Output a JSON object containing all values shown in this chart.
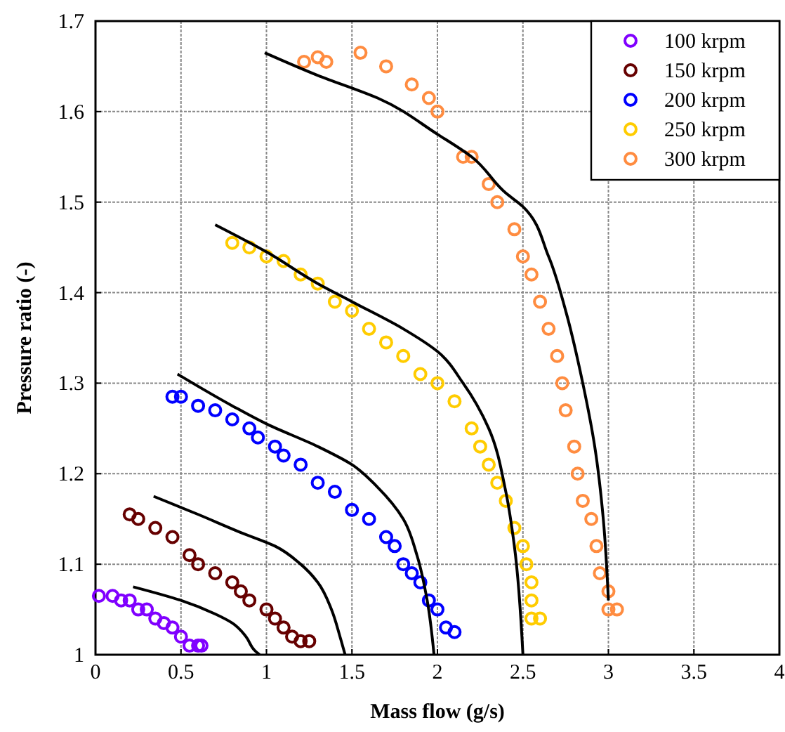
{
  "chart_data": {
    "type": "scatter",
    "xlabel": "Mass flow (g/s)",
    "ylabel": "Pressure ratio (-)",
    "xlim": [
      0,
      4
    ],
    "ylim": [
      1,
      1.7
    ],
    "xticks": [
      0,
      0.5,
      1,
      1.5,
      2,
      2.5,
      3,
      3.5,
      4
    ],
    "yticks": [
      1,
      1.1,
      1.2,
      1.3,
      1.4,
      1.5,
      1.6,
      1.7
    ],
    "grid": true,
    "legend": "top right",
    "marker": "circle",
    "series": [
      {
        "name": "100 krpm",
        "color": "#8000ff",
        "x": [
          0.02,
          0.1,
          0.15,
          0.2,
          0.25,
          0.3,
          0.35,
          0.4,
          0.45,
          0.5,
          0.55,
          0.6,
          0.62
        ],
        "values": [
          1.065,
          1.065,
          1.06,
          1.06,
          1.05,
          1.05,
          1.04,
          1.035,
          1.03,
          1.02,
          1.01,
          1.01,
          1.01
        ]
      },
      {
        "name": "150 krpm",
        "color": "#660000",
        "x": [
          0.2,
          0.25,
          0.35,
          0.45,
          0.55,
          0.6,
          0.7,
          0.8,
          0.85,
          0.9,
          1.0,
          1.05,
          1.1,
          1.15,
          1.2,
          1.25
        ],
        "values": [
          1.155,
          1.15,
          1.14,
          1.13,
          1.11,
          1.1,
          1.09,
          1.08,
          1.07,
          1.06,
          1.05,
          1.04,
          1.03,
          1.02,
          1.015,
          1.015
        ]
      },
      {
        "name": "200 krpm",
        "color": "#0000ff",
        "x": [
          0.45,
          0.5,
          0.6,
          0.7,
          0.8,
          0.9,
          0.95,
          1.05,
          1.1,
          1.2,
          1.3,
          1.4,
          1.5,
          1.6,
          1.7,
          1.75,
          1.8,
          1.85,
          1.9,
          1.95,
          2.0,
          2.05,
          2.1
        ],
        "values": [
          1.285,
          1.285,
          1.275,
          1.27,
          1.26,
          1.25,
          1.24,
          1.23,
          1.22,
          1.21,
          1.19,
          1.18,
          1.16,
          1.15,
          1.13,
          1.12,
          1.1,
          1.09,
          1.08,
          1.06,
          1.05,
          1.03,
          1.025
        ]
      },
      {
        "name": "250 krpm",
        "color": "#ffcc00",
        "x": [
          0.8,
          0.9,
          1.0,
          1.1,
          1.2,
          1.3,
          1.4,
          1.5,
          1.6,
          1.7,
          1.8,
          1.9,
          2.0,
          2.1,
          2.2,
          2.25,
          2.3,
          2.35,
          2.4,
          2.45,
          2.5,
          2.52,
          2.55,
          2.55,
          2.55,
          2.6
        ],
        "values": [
          1.455,
          1.45,
          1.44,
          1.435,
          1.42,
          1.41,
          1.39,
          1.38,
          1.36,
          1.345,
          1.33,
          1.31,
          1.3,
          1.28,
          1.25,
          1.23,
          1.21,
          1.19,
          1.17,
          1.14,
          1.12,
          1.1,
          1.08,
          1.06,
          1.04,
          1.04
        ]
      },
      {
        "name": "300 krpm",
        "color": "#ff8c40",
        "x": [
          1.22,
          1.3,
          1.35,
          1.55,
          1.7,
          1.85,
          1.95,
          2.0,
          2.15,
          2.2,
          2.3,
          2.35,
          2.45,
          2.5,
          2.55,
          2.6,
          2.65,
          2.7,
          2.73,
          2.75,
          2.8,
          2.82,
          2.85,
          2.9,
          2.93,
          2.95,
          3.0,
          3.0,
          3.05
        ],
        "values": [
          1.655,
          1.66,
          1.655,
          1.665,
          1.65,
          1.63,
          1.615,
          1.6,
          1.55,
          1.55,
          1.52,
          1.5,
          1.47,
          1.44,
          1.42,
          1.39,
          1.36,
          1.33,
          1.3,
          1.27,
          1.23,
          1.2,
          1.17,
          1.15,
          1.12,
          1.09,
          1.07,
          1.05,
          1.05
        ]
      },
      {
        "type": "line",
        "marker": "none",
        "color": "#000000",
        "x": [
          0.22,
          0.5,
          0.7,
          0.8,
          0.88,
          0.93,
          0.96
        ],
        "values": [
          1.075,
          1.06,
          1.045,
          1.035,
          1.02,
          1.005,
          1.0
        ]
      },
      {
        "type": "line",
        "marker": "none",
        "color": "#000000",
        "x": [
          0.34,
          0.6,
          0.85,
          1.05,
          1.2,
          1.3,
          1.38,
          1.43,
          1.46
        ],
        "values": [
          1.175,
          1.155,
          1.135,
          1.12,
          1.1,
          1.08,
          1.05,
          1.02,
          1.0
        ]
      },
      {
        "type": "line",
        "marker": "none",
        "color": "#000000",
        "x": [
          0.48,
          0.8,
          1.0,
          1.3,
          1.5,
          1.65,
          1.8,
          1.88,
          1.94,
          1.98
        ],
        "values": [
          1.31,
          1.275,
          1.255,
          1.23,
          1.21,
          1.185,
          1.15,
          1.11,
          1.06,
          1.0
        ]
      },
      {
        "type": "line",
        "marker": "none",
        "color": "#000000",
        "x": [
          0.7,
          1.0,
          1.3,
          1.5,
          1.8,
          2.0,
          2.15,
          2.3,
          2.4,
          2.45,
          2.5
        ],
        "values": [
          1.475,
          1.445,
          1.41,
          1.39,
          1.36,
          1.335,
          1.3,
          1.25,
          1.18,
          1.12,
          1.0
        ]
      },
      {
        "type": "line",
        "marker": "none",
        "color": "#000000",
        "x": [
          0.99,
          1.3,
          1.65,
          2.0,
          2.2,
          2.4,
          2.5,
          2.65,
          2.75,
          2.85,
          2.92,
          2.97,
          3.0
        ],
        "values": [
          1.665,
          1.64,
          1.615,
          1.575,
          1.55,
          1.51,
          1.495,
          1.44,
          1.38,
          1.3,
          1.23,
          1.15,
          1.06
        ]
      }
    ]
  }
}
